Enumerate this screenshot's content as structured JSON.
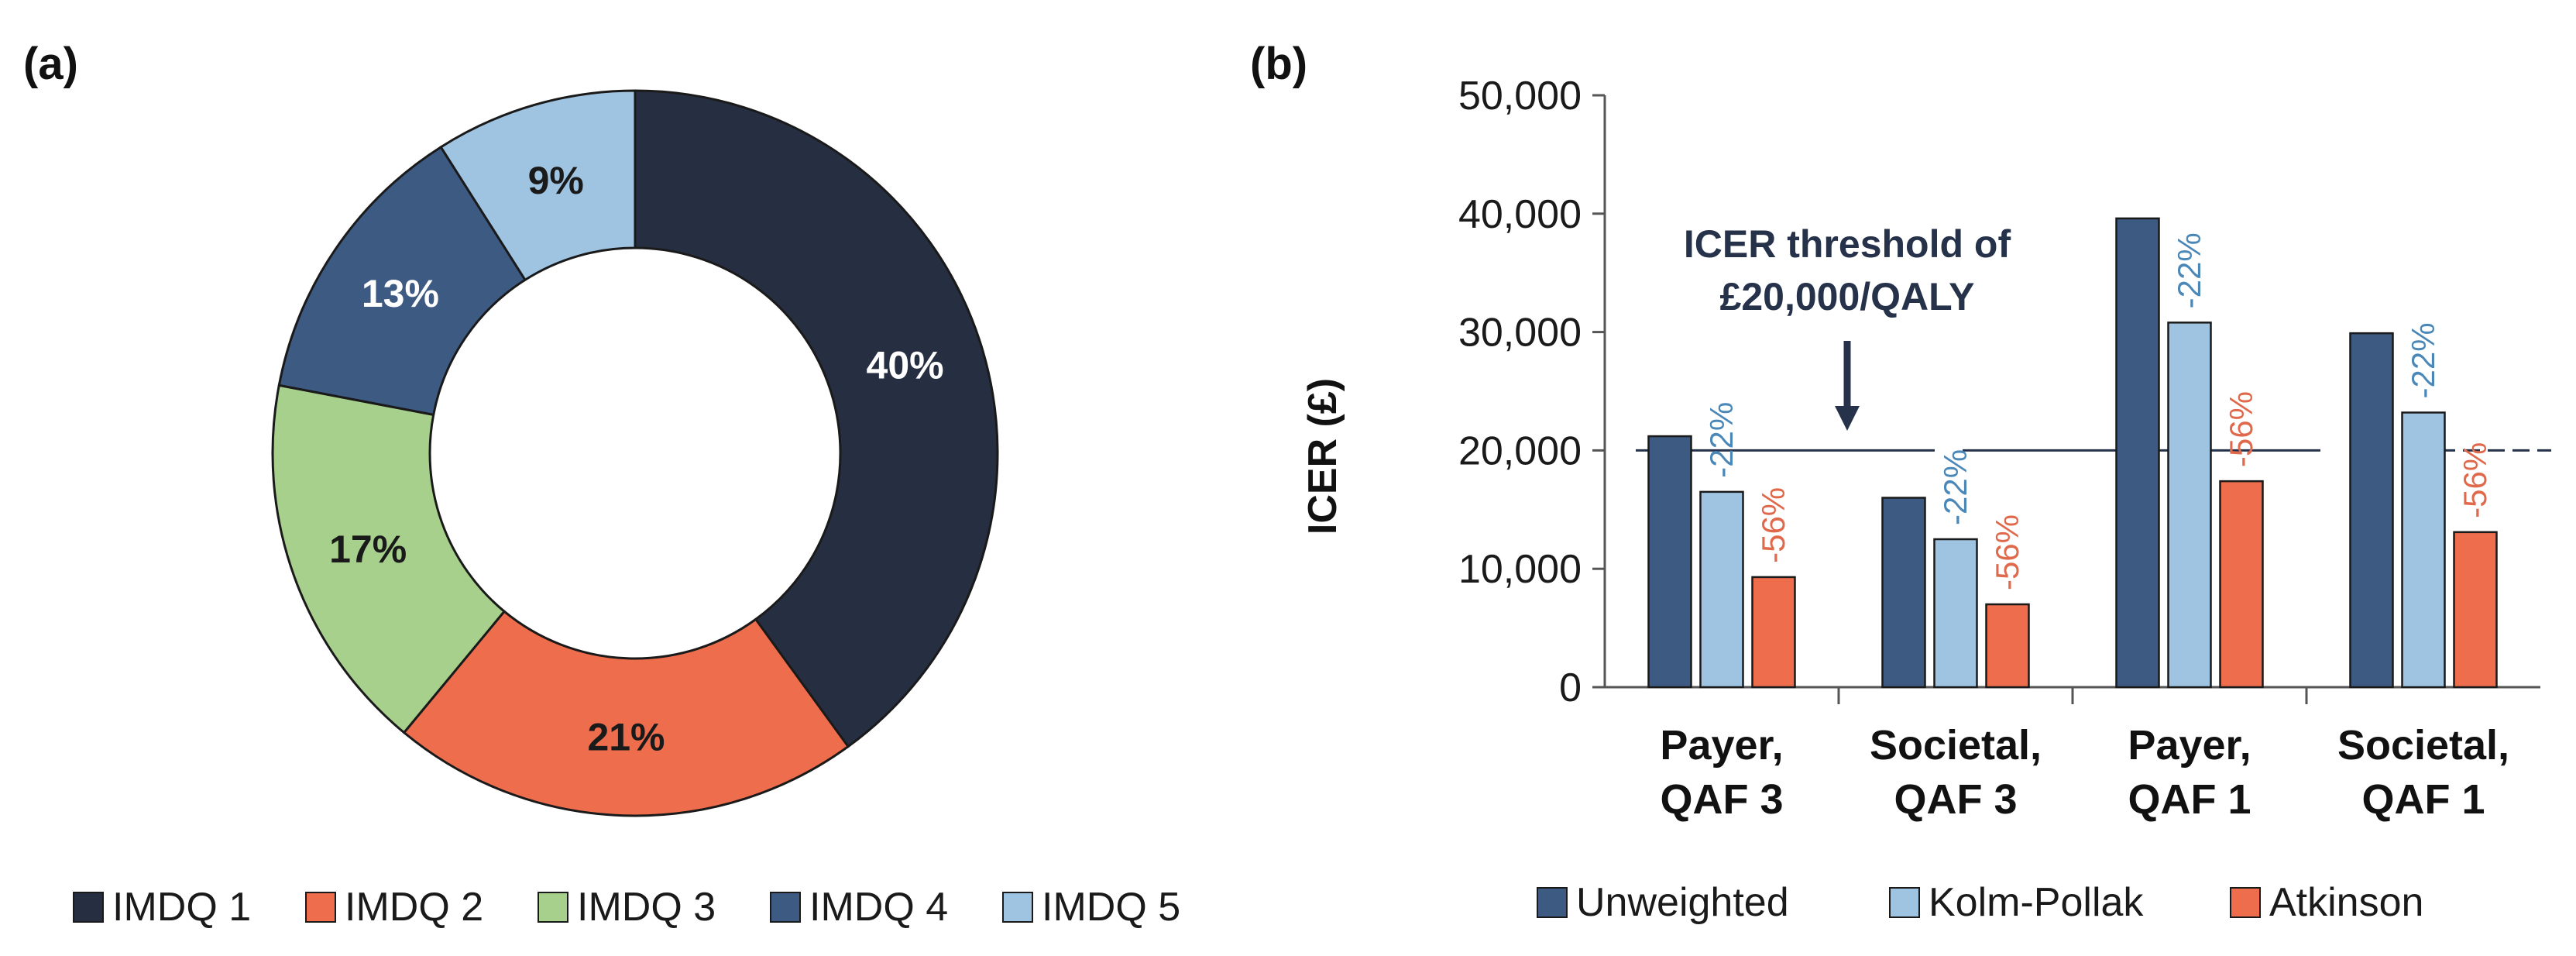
{
  "figure": {
    "panel_a_label": "(a)",
    "panel_b_label": "(b)"
  },
  "chart_data": [
    {
      "type": "pie",
      "variant": "donut",
      "title": "",
      "slices": [
        {
          "name": "IMDQ 1",
          "value": 40,
          "label": "40%",
          "color": "#262f42",
          "text_color": "#ffffff"
        },
        {
          "name": "IMDQ 2",
          "value": 21,
          "label": "21%",
          "color": "#ee6d4d",
          "text_color": "#1a1a1a"
        },
        {
          "name": "IMDQ 3",
          "value": 17,
          "label": "17%",
          "color": "#a7d08c",
          "text_color": "#1a1a1a"
        },
        {
          "name": "IMDQ 4",
          "value": 13,
          "label": "13%",
          "color": "#3d5a83",
          "text_color": "#ffffff"
        },
        {
          "name": "IMDQ 5",
          "value": 9,
          "label": "9%",
          "color": "#9fc4e2",
          "text_color": "#1a1a1a"
        }
      ],
      "legend_placement": "bottom"
    },
    {
      "type": "bar",
      "title": "",
      "ylabel": "ICER (£)",
      "xlabel": "",
      "ylim": [
        0,
        50000
      ],
      "yticks": [
        0,
        10000,
        20000,
        30000,
        40000,
        50000
      ],
      "ytick_labels": [
        "0",
        "10,000",
        "20,000",
        "30,000",
        "40,000",
        "50,000"
      ],
      "categories": [
        {
          "line1": "Payer,",
          "line2": "QAF 3"
        },
        {
          "line1": "Societal,",
          "line2": "QAF 3"
        },
        {
          "line1": "Payer,",
          "line2": "QAF 1"
        },
        {
          "line1": "Societal,",
          "line2": "QAF 1"
        }
      ],
      "series": [
        {
          "name": "Unweighted",
          "color": "#3d5a83",
          "values": [
            21200,
            16000,
            39600,
            29900
          ],
          "change_labels": [
            "",
            "",
            "",
            ""
          ]
        },
        {
          "name": "Kolm-Pollak",
          "color": "#9fc4e2",
          "values": [
            16500,
            12500,
            30800,
            23200
          ],
          "change_labels": [
            "-22%",
            "-22%",
            "-22%",
            "-22%"
          ],
          "change_color": "#4b88b8"
        },
        {
          "name": "Atkinson",
          "color": "#ee6d4d",
          "values": [
            9300,
            7000,
            17400,
            13100
          ],
          "change_labels": [
            "-56%",
            "-56%",
            "-56%",
            "-56%"
          ],
          "change_color": "#e0694c"
        }
      ],
      "threshold": {
        "value": 20000,
        "label_line1": "ICER threshold of",
        "label_line2": "£20,000/QALY"
      },
      "legend_placement": "bottom"
    }
  ]
}
